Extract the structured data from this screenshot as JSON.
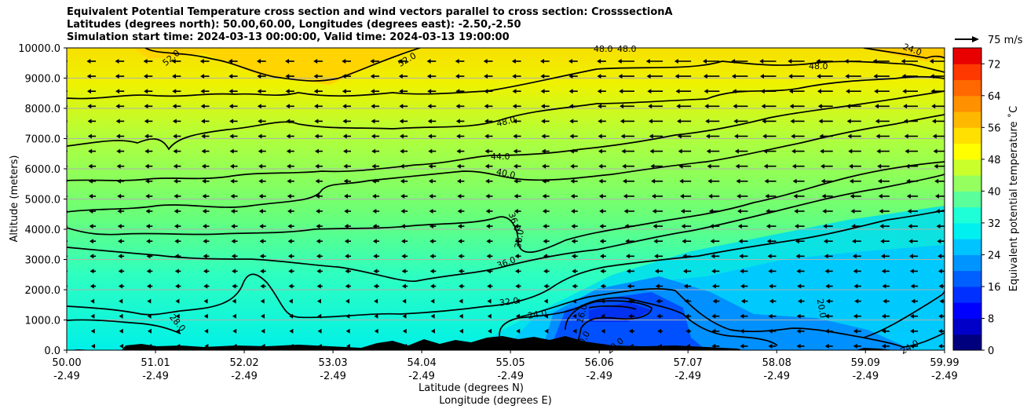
{
  "title_lines": [
    "Equivalent Potential Temperature cross section and wind vectors parallel to cross section: CrosssectionA",
    "Latitudes (degrees north): 50.00,60.00, Longitudes (degrees east): -2.50,-2.50",
    "Simulation start time: 2024-03-13 00:00:00, Valid time: 2024-03-13 19:00:00"
  ],
  "chart_data": {
    "type": "heatmap",
    "title": "Equivalent Potential Temperature cross section and wind vectors parallel to cross section: CrosssectionA",
    "ylabel": "Altitude (meters)",
    "xlabel_lines": [
      "Latitude (degrees N)",
      "Longitude (degrees E)"
    ],
    "xlim": [
      50.0,
      59.99
    ],
    "ylim": [
      0,
      10000
    ],
    "y_ticks": [
      "0.0",
      "1000.0",
      "2000.0",
      "3000.0",
      "4000.0",
      "5000.0",
      "6000.0",
      "7000.0",
      "8000.0",
      "9000.0",
      "10000.0"
    ],
    "x_ticks": [
      {
        "lat": "50.00",
        "lon": "-2.49"
      },
      {
        "lat": "51.01",
        "lon": "-2.49"
      },
      {
        "lat": "52.02",
        "lon": "-2.49"
      },
      {
        "lat": "53.03",
        "lon": "-2.49"
      },
      {
        "lat": "54.04",
        "lon": "-2.49"
      },
      {
        "lat": "55.05",
        "lon": "-2.49"
      },
      {
        "lat": "56.06",
        "lon": "-2.49"
      },
      {
        "lat": "57.07",
        "lon": "-2.49"
      },
      {
        "lat": "58.08",
        "lon": "-2.49"
      },
      {
        "lat": "59.09",
        "lon": "-2.49"
      },
      {
        "lat": "59.99",
        "lon": "-2.49"
      }
    ],
    "grid": "horizontal",
    "colorbar": {
      "label": "Equivalent potential temperature ˚C",
      "min": 0,
      "max": 76,
      "ticks": [
        "0",
        "8",
        "16",
        "24",
        "32",
        "40",
        "48",
        "56",
        "64",
        "72"
      ]
    },
    "contour_labels": [
      "52.0",
      "52.0",
      "48.0",
      "48.0",
      "48.0",
      "48.0",
      "44.0",
      "40.0",
      "36.0",
      "36.0",
      "36.0",
      "32.0",
      "28.0",
      "24.0",
      "24.0",
      "24.0",
      "20.0",
      "20.0",
      "16.0",
      "20.0"
    ],
    "wind_reference": "75 m/s",
    "theta_e_field_note": "values decrease from ~52 aloft to ~20-28 near surface; cold pocket ~16-20 near 56-58N below 2000 m"
  }
}
